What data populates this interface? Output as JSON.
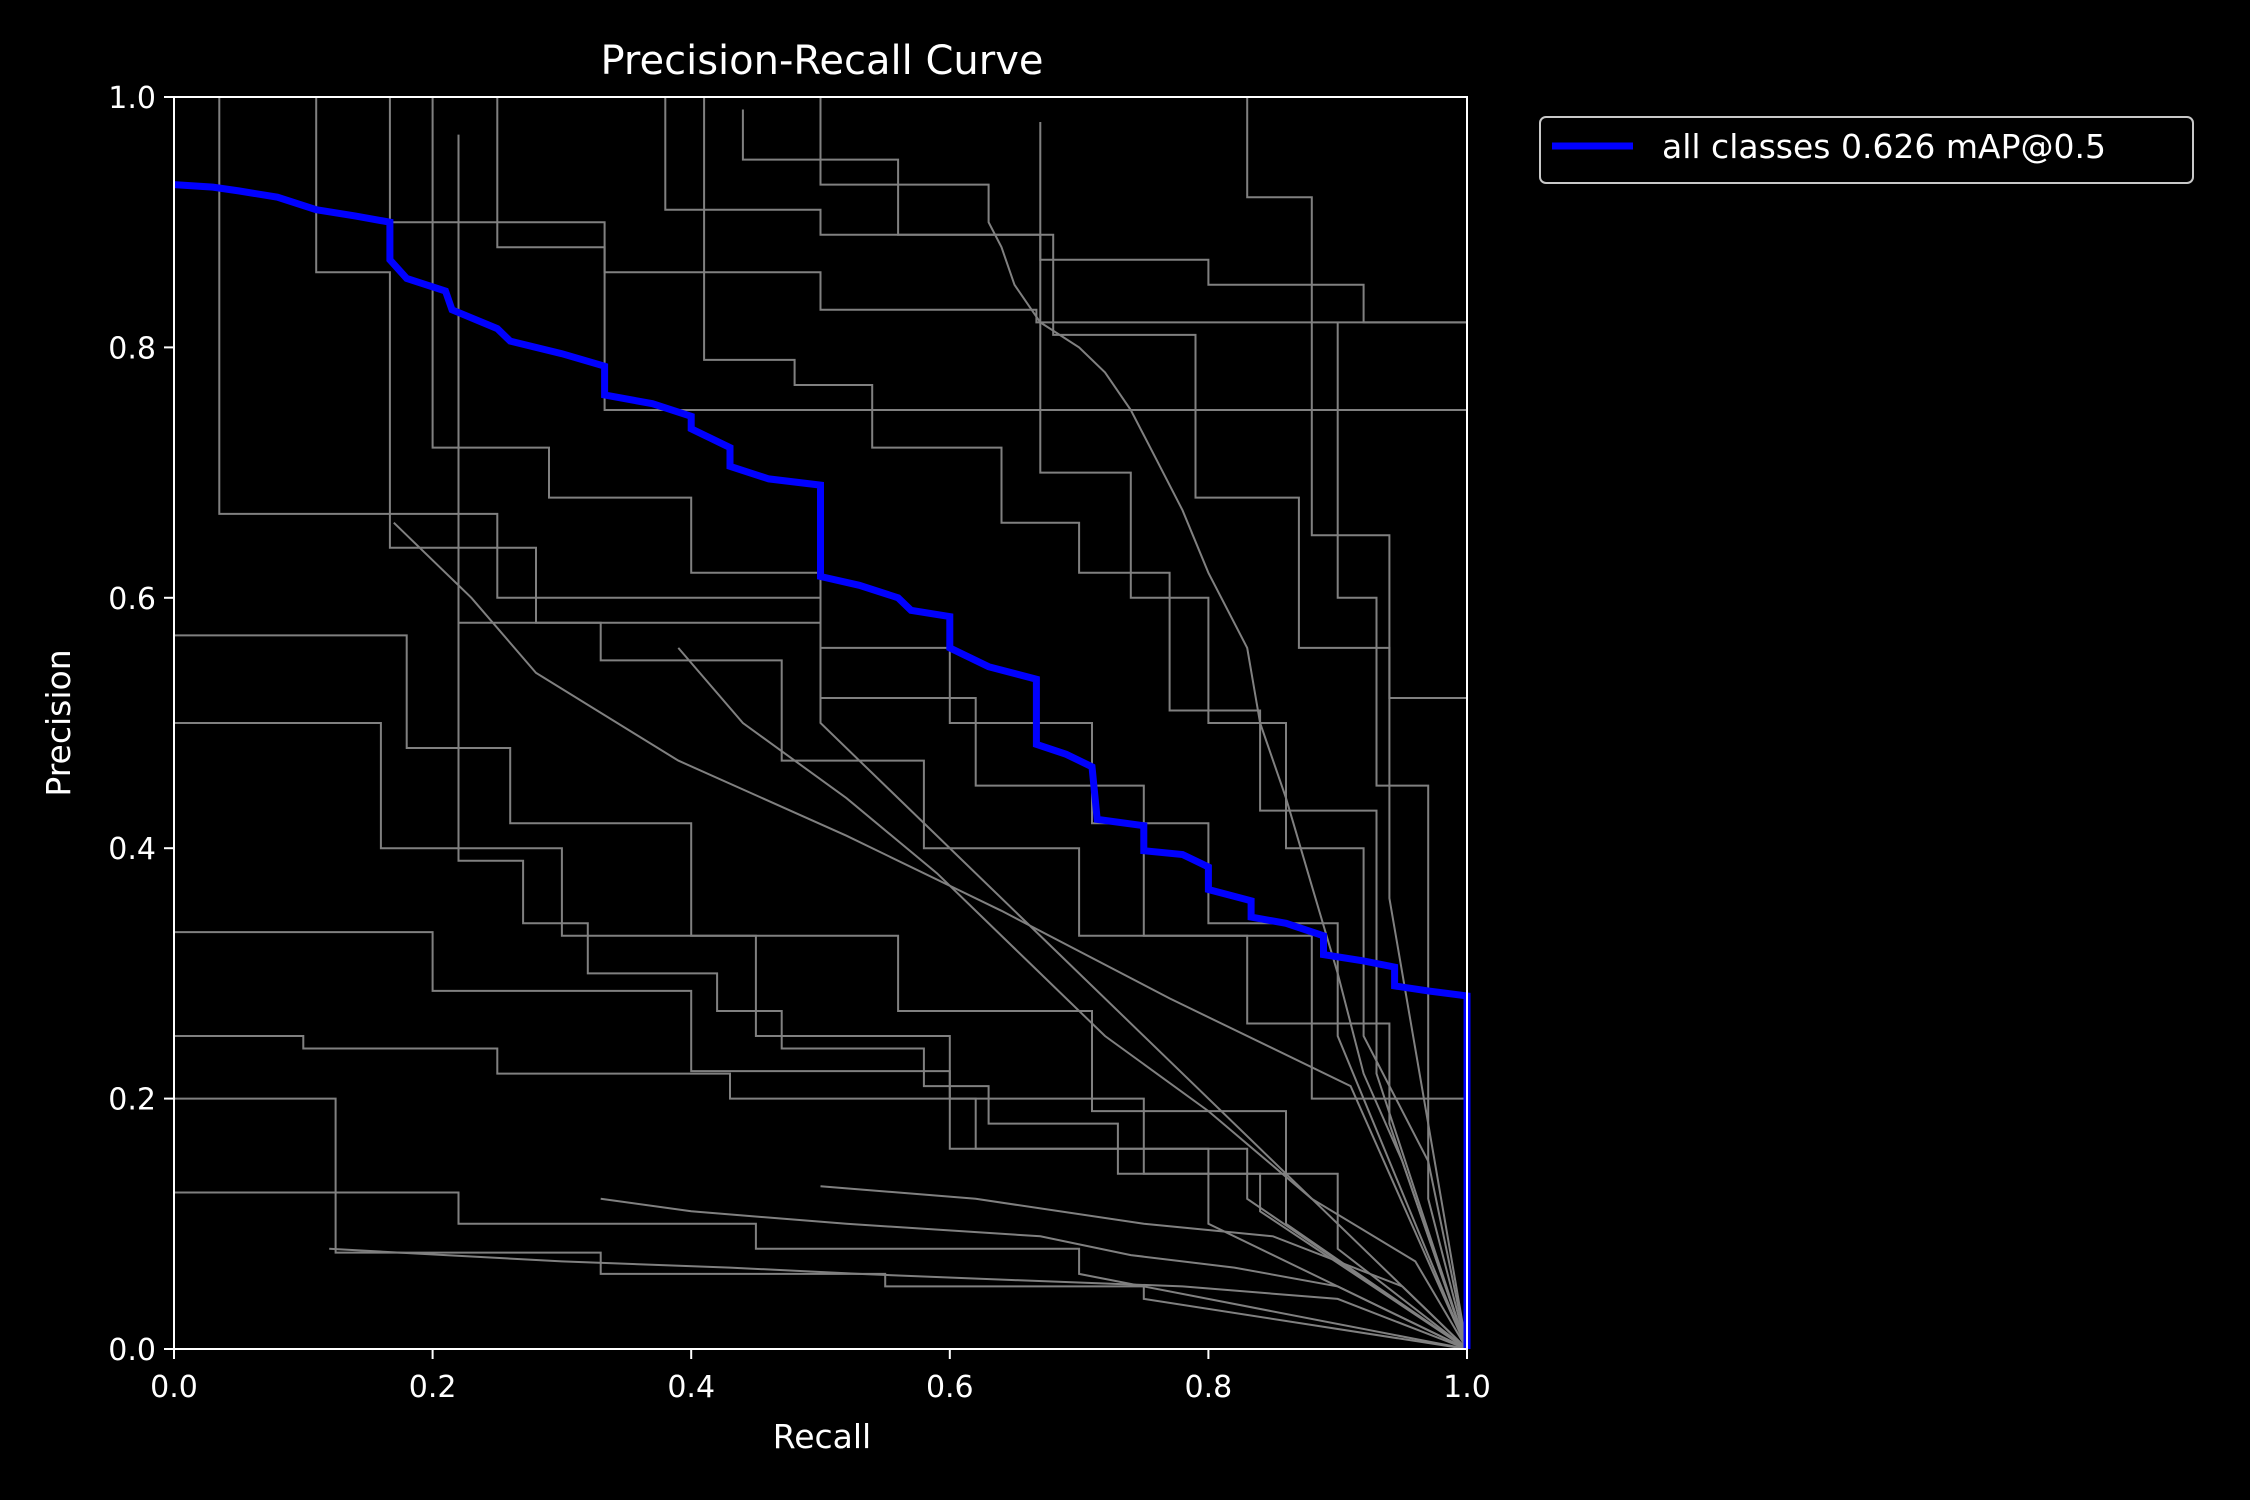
{
  "chart_data": {
    "type": "line",
    "title": "Precision-Recall Curve",
    "xlabel": "Recall",
    "ylabel": "Precision",
    "xlim": [
      0,
      1
    ],
    "ylim": [
      0,
      1
    ],
    "x_ticks": [
      "0.0",
      "0.2",
      "0.4",
      "0.6",
      "0.8",
      "1.0"
    ],
    "y_ticks": [
      "0.0",
      "0.2",
      "0.4",
      "0.6",
      "0.8",
      "1.0"
    ],
    "grid": false,
    "legend_position": "outside-top-right",
    "colors": {
      "background": "#000000",
      "series_main": "#0000ff",
      "series_class": "#808080",
      "axis": "#ffffff"
    },
    "series": [
      {
        "name": "all classes 0.626 mAP@0.5",
        "color": "#0000ff",
        "x": [
          0,
          0.03,
          0.05,
          0.08,
          0.11,
          0.14,
          0.167,
          0.167,
          0.18,
          0.21,
          0.215,
          0.25,
          0.26,
          0.3,
          0.333,
          0.333,
          0.37,
          0.4,
          0.4,
          0.43,
          0.43,
          0.46,
          0.5,
          0.5,
          0.53,
          0.56,
          0.57,
          0.6,
          0.6,
          0.63,
          0.667,
          0.667,
          0.69,
          0.71,
          0.714,
          0.75,
          0.75,
          0.78,
          0.8,
          0.8,
          0.833,
          0.833,
          0.86,
          0.889,
          0.889,
          0.92,
          0.944,
          0.944,
          0.97,
          1.0,
          1.0
        ],
        "y": [
          0.93,
          0.928,
          0.925,
          0.92,
          0.91,
          0.905,
          0.9,
          0.87,
          0.855,
          0.845,
          0.83,
          0.815,
          0.805,
          0.795,
          0.785,
          0.762,
          0.755,
          0.745,
          0.735,
          0.72,
          0.705,
          0.695,
          0.69,
          0.617,
          0.61,
          0.6,
          0.59,
          0.585,
          0.56,
          0.545,
          0.535,
          0.483,
          0.475,
          0.465,
          0.423,
          0.418,
          0.398,
          0.395,
          0.385,
          0.367,
          0.358,
          0.345,
          0.34,
          0.33,
          0.315,
          0.31,
          0.305,
          0.29,
          0.286,
          0.282,
          0.0
        ]
      },
      {
        "name": "",
        "color": "#808080",
        "x": [
          0,
          0.167,
          0.167,
          0.333,
          0.333,
          1.0,
          1.0
        ],
        "y": [
          1.0,
          1.0,
          0.9,
          0.9,
          0.75,
          0.75,
          0.0
        ]
      },
      {
        "name": "",
        "color": "#808080",
        "x": [
          0.035,
          0.035,
          0.25,
          0.25,
          0.5,
          0.5,
          1.0
        ],
        "y": [
          1.0,
          0.667,
          0.667,
          0.6,
          0.6,
          0.5,
          0.0
        ]
      },
      {
        "name": "",
        "color": "#808080",
        "x": [
          0.25,
          0.25,
          0.333,
          0.333,
          0.5,
          0.5,
          0.667,
          0.667,
          1.0,
          1.0
        ],
        "y": [
          1.0,
          0.88,
          0.88,
          0.86,
          0.86,
          0.83,
          0.83,
          0.82,
          0.82,
          0.0
        ]
      },
      {
        "name": "",
        "color": "#808080",
        "x": [
          0.5,
          0.5,
          0.63,
          0.63,
          0.64,
          0.65,
          0.67,
          0.7,
          0.72,
          0.74,
          0.76,
          0.78,
          0.8,
          0.83,
          0.84,
          0.86,
          0.88,
          0.9,
          0.92,
          0.95,
          0.97,
          1.0
        ],
        "y": [
          1.0,
          0.93,
          0.93,
          0.9,
          0.88,
          0.85,
          0.82,
          0.8,
          0.78,
          0.75,
          0.71,
          0.67,
          0.62,
          0.56,
          0.5,
          0.44,
          0.37,
          0.3,
          0.22,
          0.15,
          0.09,
          0.0
        ]
      },
      {
        "name": "",
        "color": "#808080",
        "x": [
          0.38,
          0.38,
          0.5,
          0.5,
          0.67,
          0.67,
          0.8,
          0.8,
          0.92,
          0.92,
          1.0,
          1.0
        ],
        "y": [
          1.0,
          0.91,
          0.91,
          0.89,
          0.89,
          0.87,
          0.87,
          0.85,
          0.85,
          0.82,
          0.82,
          0.0
        ]
      },
      {
        "name": "",
        "color": "#808080",
        "x": [
          0.11,
          0.11,
          0.167,
          0.167,
          0.28,
          0.28,
          0.5,
          0.5,
          0.62,
          0.62,
          0.75,
          0.75,
          0.88,
          0.88,
          1.0,
          1.0
        ],
        "y": [
          1.0,
          0.86,
          0.86,
          0.64,
          0.64,
          0.58,
          0.58,
          0.52,
          0.52,
          0.45,
          0.45,
          0.33,
          0.33,
          0.2,
          0.2,
          0.0
        ]
      },
      {
        "name": "",
        "color": "#808080",
        "x": [
          0,
          0.18,
          0.18,
          0.26,
          0.26,
          0.4,
          0.4,
          0.56,
          0.56,
          0.71,
          0.71,
          0.86,
          0.86,
          1.0
        ],
        "y": [
          0.57,
          0.57,
          0.48,
          0.48,
          0.42,
          0.42,
          0.33,
          0.33,
          0.27,
          0.27,
          0.19,
          0.19,
          0.1,
          0.0
        ]
      },
      {
        "name": "",
        "color": "#808080",
        "x": [
          0,
          0.16,
          0.16,
          0.3,
          0.3,
          0.45,
          0.45,
          0.6,
          0.6,
          0.75,
          0.75,
          0.9,
          0.9,
          1.0
        ],
        "y": [
          0.5,
          0.5,
          0.4,
          0.4,
          0.33,
          0.33,
          0.25,
          0.25,
          0.2,
          0.2,
          0.14,
          0.14,
          0.08,
          0.0
        ]
      },
      {
        "name": "",
        "color": "#808080",
        "x": [
          0,
          0.2,
          0.2,
          0.4,
          0.4,
          0.6,
          0.6,
          0.8,
          0.8,
          1.0
        ],
        "y": [
          0.333,
          0.333,
          0.286,
          0.286,
          0.222,
          0.222,
          0.16,
          0.16,
          0.1,
          0.0
        ]
      },
      {
        "name": "",
        "color": "#808080",
        "x": [
          0,
          0.125,
          0.125,
          0.33,
          0.33,
          0.55,
          0.55,
          0.75,
          0.75,
          1.0
        ],
        "y": [
          0.2,
          0.2,
          0.077,
          0.077,
          0.06,
          0.06,
          0.05,
          0.05,
          0.04,
          0.0
        ]
      },
      {
        "name": "",
        "color": "#808080",
        "x": [
          0,
          0.22,
          0.22,
          0.45,
          0.45,
          0.7,
          0.7,
          1.0
        ],
        "y": [
          0.125,
          0.125,
          0.1,
          0.1,
          0.08,
          0.08,
          0.06,
          0.0
        ]
      },
      {
        "name": "",
        "color": "#808080",
        "x": [
          0,
          0.1,
          0.1,
          0.25,
          0.25,
          0.43,
          0.43,
          0.62,
          0.62,
          0.83,
          0.83,
          1.0
        ],
        "y": [
          0.25,
          0.25,
          0.24,
          0.24,
          0.22,
          0.22,
          0.2,
          0.2,
          0.16,
          0.16,
          0.12,
          0.0
        ]
      },
      {
        "name": "",
        "color": "#808080",
        "x": [
          0.2,
          0.2,
          0.29,
          0.29,
          0.4,
          0.4,
          0.5,
          0.5,
          0.6,
          0.6,
          0.71,
          0.71,
          0.8,
          0.8,
          0.9,
          0.9,
          1.0
        ],
        "y": [
          1.0,
          0.72,
          0.72,
          0.68,
          0.68,
          0.62,
          0.62,
          0.56,
          0.56,
          0.5,
          0.5,
          0.42,
          0.42,
          0.34,
          0.34,
          0.25,
          0.0
        ]
      },
      {
        "name": "",
        "color": "#808080",
        "x": [
          0.22,
          0.22,
          0.33,
          0.33,
          0.47,
          0.47,
          0.58,
          0.58,
          0.7,
          0.7,
          0.83,
          0.83,
          0.94,
          0.94,
          1.0
        ],
        "y": [
          0.97,
          0.58,
          0.58,
          0.55,
          0.55,
          0.47,
          0.47,
          0.4,
          0.4,
          0.33,
          0.33,
          0.26,
          0.26,
          0.18,
          0.0
        ]
      },
      {
        "name": "",
        "color": "#808080",
        "x": [
          0.17,
          0.17,
          0.23,
          0.23,
          0.28,
          0.28,
          0.39,
          0.39,
          0.52,
          0.52,
          0.64,
          0.64,
          0.77,
          0.77,
          0.91,
          0.91,
          1.0
        ],
        "y": [
          0.66,
          0.66,
          0.6,
          0.6,
          0.54,
          0.54,
          0.47,
          0.47,
          0.41,
          0.41,
          0.35,
          0.35,
          0.28,
          0.28,
          0.21,
          0.21,
          0.0
        ]
      },
      {
        "name": "",
        "color": "#808080",
        "x": [
          0.22,
          0.22,
          0.27,
          0.27,
          0.32,
          0.32,
          0.42,
          0.42,
          0.47,
          0.47,
          0.58,
          0.58,
          0.63,
          0.63,
          0.73,
          0.73,
          0.84,
          0.84,
          1.0
        ],
        "y": [
          0.83,
          0.39,
          0.39,
          0.34,
          0.34,
          0.3,
          0.3,
          0.27,
          0.27,
          0.24,
          0.24,
          0.21,
          0.21,
          0.18,
          0.18,
          0.14,
          0.14,
          0.11,
          0.0
        ]
      },
      {
        "name": "",
        "color": "#808080",
        "x": [
          0.39,
          0.39,
          0.44,
          0.44,
          0.52,
          0.52,
          0.59,
          0.59,
          0.66,
          0.66,
          0.72,
          0.72,
          0.8,
          0.8,
          0.88,
          0.88,
          0.96,
          1.0
        ],
        "y": [
          0.56,
          0.56,
          0.5,
          0.5,
          0.44,
          0.44,
          0.38,
          0.38,
          0.31,
          0.31,
          0.25,
          0.25,
          0.19,
          0.19,
          0.12,
          0.12,
          0.07,
          0.0
        ]
      },
      {
        "name": "",
        "color": "#808080",
        "x": [
          0.41,
          0.41,
          0.48,
          0.48,
          0.54,
          0.54,
          0.64,
          0.64,
          0.7,
          0.7,
          0.77,
          0.77,
          0.84,
          0.84,
          0.93,
          0.93,
          1.0
        ],
        "y": [
          1.0,
          0.79,
          0.79,
          0.77,
          0.77,
          0.72,
          0.72,
          0.66,
          0.66,
          0.62,
          0.62,
          0.51,
          0.51,
          0.43,
          0.43,
          0.22,
          0.0
        ]
      },
      {
        "name": "",
        "color": "#808080",
        "x": [
          0.44,
          0.44,
          0.56,
          0.56,
          0.68,
          0.68,
          0.79,
          0.79,
          0.87,
          0.87,
          0.94,
          0.94,
          1.0
        ],
        "y": [
          0.99,
          0.95,
          0.95,
          0.89,
          0.89,
          0.81,
          0.81,
          0.68,
          0.68,
          0.56,
          0.56,
          0.36,
          0.0
        ]
      },
      {
        "name": "",
        "color": "#808080",
        "x": [
          0.33,
          0.33,
          0.4,
          0.4,
          0.52,
          0.52,
          0.67,
          0.67,
          0.74,
          0.74,
          0.82,
          0.82,
          0.9,
          0.9,
          1.0
        ],
        "y": [
          0.12,
          0.12,
          0.11,
          0.11,
          0.1,
          0.1,
          0.09,
          0.09,
          0.075,
          0.075,
          0.065,
          0.065,
          0.05,
          0.05,
          0.0
        ]
      },
      {
        "name": "",
        "color": "#808080",
        "x": [
          0.5,
          0.5,
          0.62,
          0.62,
          0.75,
          0.75,
          0.85,
          0.85,
          0.95,
          0.95,
          1.0
        ],
        "y": [
          0.13,
          0.13,
          0.12,
          0.12,
          0.1,
          0.1,
          0.09,
          0.09,
          0.05,
          0.05,
          0.0
        ]
      },
      {
        "name": "",
        "color": "#808080",
        "x": [
          0.12,
          0.12,
          0.21,
          0.21,
          0.3,
          0.3,
          0.43,
          0.43,
          0.53,
          0.53,
          0.65,
          0.65,
          0.78,
          0.78,
          0.9,
          1.0
        ],
        "y": [
          0.08,
          0.08,
          0.075,
          0.075,
          0.07,
          0.07,
          0.065,
          0.065,
          0.06,
          0.06,
          0.055,
          0.055,
          0.05,
          0.05,
          0.04,
          0.0
        ]
      },
      {
        "name": "",
        "color": "#808080",
        "x": [
          0.67,
          0.67,
          0.74,
          0.74,
          0.8,
          0.8,
          0.86,
          0.86,
          0.92,
          0.92,
          0.97,
          1.0
        ],
        "y": [
          0.98,
          0.7,
          0.7,
          0.6,
          0.6,
          0.5,
          0.5,
          0.4,
          0.4,
          0.25,
          0.15,
          0.0
        ]
      },
      {
        "name": "",
        "color": "#808080",
        "x": [
          0.83,
          0.83,
          0.88,
          0.88,
          0.94,
          0.94,
          1.0,
          1.0
        ],
        "y": [
          1.0,
          0.92,
          0.92,
          0.65,
          0.65,
          0.52,
          0.52,
          0.0
        ]
      },
      {
        "name": "",
        "color": "#808080",
        "x": [
          0.9,
          0.9,
          0.93,
          0.93,
          0.97,
          0.97,
          1.0
        ],
        "y": [
          0.82,
          0.6,
          0.6,
          0.45,
          0.45,
          0.12,
          0.0
        ]
      }
    ]
  }
}
